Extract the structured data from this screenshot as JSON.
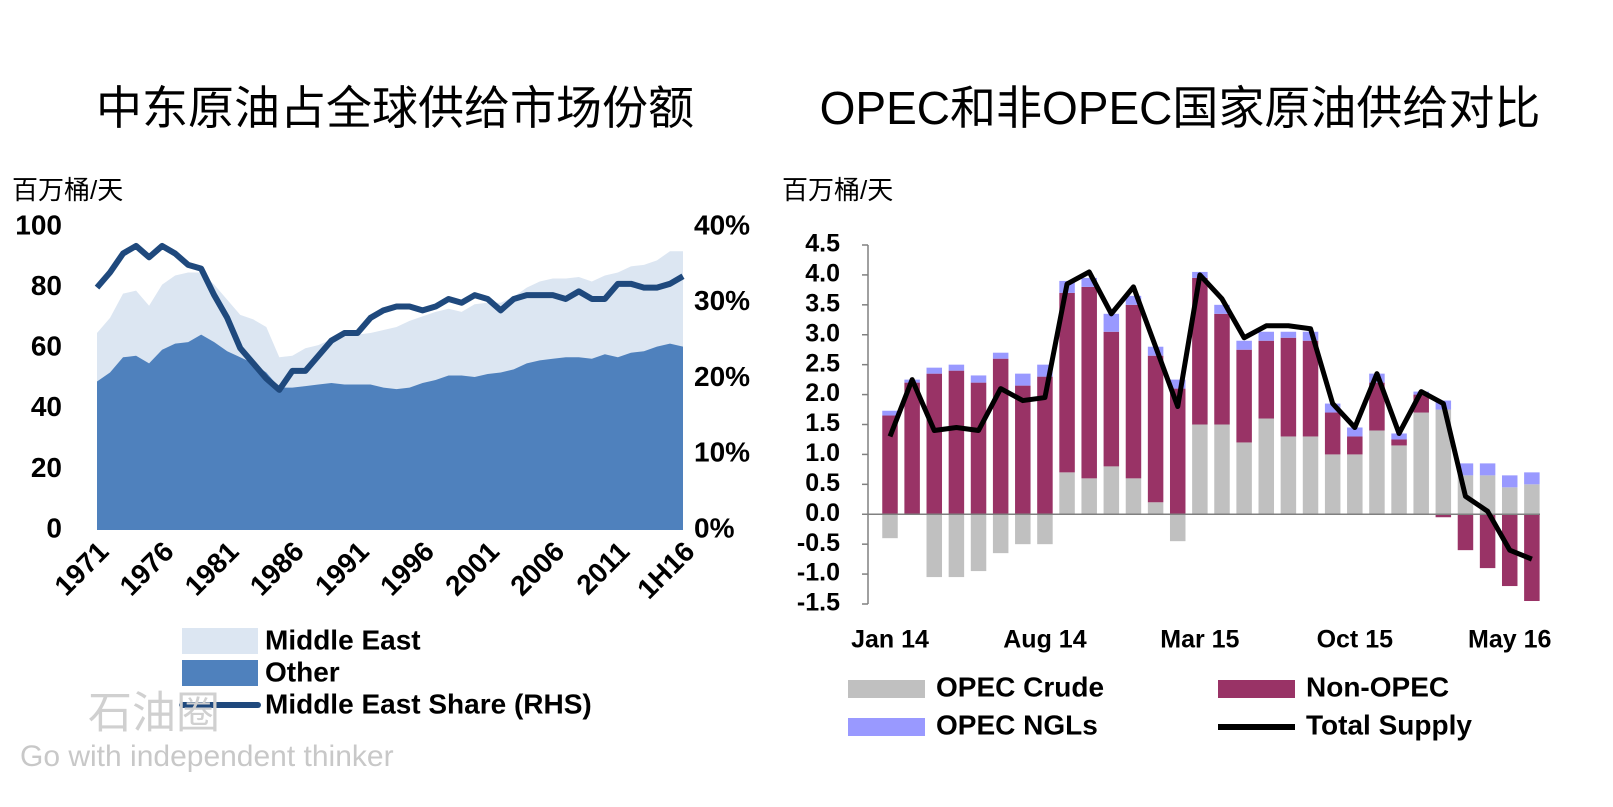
{
  "chart_data": [
    {
      "type": "area",
      "title": "中东原油占全球供给市场份额",
      "y_label": "百万桶/天",
      "categories": [
        "1971",
        null,
        null,
        null,
        null,
        "1976",
        null,
        null,
        null,
        null,
        "1981",
        null,
        null,
        null,
        null,
        "1986",
        null,
        null,
        null,
        null,
        "1991",
        null,
        null,
        null,
        null,
        "1996",
        null,
        null,
        null,
        null,
        "2001",
        null,
        null,
        null,
        null,
        "2006",
        null,
        null,
        null,
        null,
        "2011",
        null,
        null,
        null,
        null,
        "1H16"
      ],
      "series": [
        {
          "name": "Middle East",
          "color": "#dce6f2",
          "values": [
            16,
            18,
            21,
            21.5,
            19,
            21.5,
            22.5,
            23,
            20.5,
            19,
            17,
            14,
            14.5,
            15,
            10,
            10.5,
            12.5,
            13,
            14.5,
            16,
            16.5,
            17,
            19,
            20.5,
            22,
            22,
            22.5,
            22,
            21,
            24,
            23.5,
            23,
            24,
            25,
            26,
            26.5,
            26,
            26.5,
            25.5,
            26,
            28,
            28.5,
            28.5,
            28.5,
            30.5,
            31.5
          ]
        },
        {
          "name": "Other",
          "color": "#4f81bd",
          "values": [
            49,
            52,
            57,
            57.5,
            55,
            59.5,
            61.5,
            62,
            64.5,
            62,
            59,
            57,
            55,
            52,
            47,
            47,
            47.5,
            48,
            48.5,
            48,
            48,
            48,
            47,
            46.5,
            47,
            48.5,
            49.5,
            51,
            51,
            50.5,
            51.5,
            52,
            53,
            55,
            56,
            56.5,
            57,
            57,
            56.5,
            58,
            57,
            58.5,
            59,
            60.5,
            61.5,
            60.5
          ]
        },
        {
          "name": "Middle East Share (RHS)",
          "color": "#1f497d",
          "axis": "y2",
          "values": [
            32,
            34,
            36.5,
            37.5,
            36,
            37.5,
            36.5,
            35,
            34.5,
            31,
            28,
            24,
            22,
            20,
            18.5,
            21,
            21,
            23,
            25,
            26,
            26,
            28,
            29,
            29.5,
            29.5,
            29,
            29.5,
            30.5,
            30,
            31,
            30.5,
            29,
            30.5,
            31,
            31,
            31,
            30.5,
            31.5,
            30.5,
            30.5,
            32.5,
            32.5,
            32,
            32,
            32.5,
            33.5
          ]
        }
      ],
      "ylim": [
        0,
        100
      ],
      "yticks": [
        0,
        20,
        40,
        60,
        80,
        100
      ],
      "y2lim": [
        0,
        40
      ],
      "y2ticks": [
        {
          "value": 0,
          "label": "0%"
        },
        {
          "value": 10,
          "label": "10%"
        },
        {
          "value": 20,
          "label": "20%"
        },
        {
          "value": 30,
          "label": "30%"
        },
        {
          "value": 40,
          "label": "40%"
        }
      ],
      "grid": false,
      "legend": "bottom"
    },
    {
      "type": "bar",
      "stacked": true,
      "title": "OPEC和非OPEC国家原油供给对比",
      "y_label": "百万桶/天",
      "categories": [
        "Jan 14",
        null,
        null,
        null,
        null,
        null,
        null,
        "Aug 14",
        null,
        null,
        null,
        null,
        null,
        null,
        "Mar 15",
        null,
        null,
        null,
        null,
        null,
        null,
        "Oct 15",
        null,
        null,
        null,
        null,
        null,
        null,
        "May 16",
        null
      ],
      "series": [
        {
          "name": "OPEC Crude",
          "color": "#c0c0c0",
          "values": [
            -0.4,
            0,
            -1.05,
            -1.05,
            -0.95,
            -0.65,
            -0.5,
            -0.5,
            0.7,
            0.6,
            0.8,
            0.6,
            0.2,
            -0.45,
            1.5,
            1.5,
            1.2,
            1.6,
            1.3,
            1.3,
            1.0,
            1.0,
            1.4,
            1.15,
            1.7,
            1.75,
            0.65,
            0.65,
            0.45,
            0.5
          ]
        },
        {
          "name": "Non-OPEC",
          "color": "#993366",
          "values": [
            1.65,
            2.2,
            2.35,
            2.4,
            2.2,
            2.6,
            2.15,
            2.3,
            3.0,
            3.2,
            2.25,
            2.9,
            2.45,
            2.1,
            2.45,
            1.85,
            1.55,
            1.3,
            1.65,
            1.6,
            0.7,
            0.3,
            0.8,
            0.1,
            0.3,
            -0.05,
            -0.6,
            -0.9,
            -1.2,
            -1.45
          ]
        },
        {
          "name": "OPEC NGLs",
          "color": "#9999ff",
          "values": [
            0.08,
            0.05,
            0.1,
            0.1,
            0.12,
            0.1,
            0.2,
            0.2,
            0.2,
            0.15,
            0.3,
            0.15,
            0.15,
            0.15,
            0.1,
            0.15,
            0.15,
            0.15,
            0.1,
            0.15,
            0.15,
            0.15,
            0.15,
            0.1,
            0.05,
            0.15,
            0.2,
            0.2,
            0.2,
            0.2
          ]
        },
        {
          "name": "Total Supply",
          "color": "#000000",
          "type": "line",
          "values": [
            1.3,
            2.25,
            1.4,
            1.45,
            1.4,
            2.1,
            1.9,
            1.95,
            3.85,
            4.05,
            3.35,
            3.8,
            2.8,
            1.8,
            4.0,
            3.6,
            2.95,
            3.15,
            3.15,
            3.1,
            1.85,
            1.45,
            2.35,
            1.35,
            2.05,
            1.85,
            0.3,
            0.05,
            -0.6,
            -0.75
          ]
        }
      ],
      "ylim": [
        -1.5,
        4.5
      ],
      "yticks": [
        -1.5,
        {
          "value": -1,
          "label": "-1.0"
        },
        -0.5,
        {
          "value": 0,
          "label": "0.0"
        },
        0.5,
        {
          "value": 1,
          "label": "1.0"
        },
        1.5,
        {
          "value": 2,
          "label": "2.0"
        },
        2.5,
        {
          "value": 3,
          "label": "3.0"
        },
        3.5,
        {
          "value": 4,
          "label": "4.0"
        },
        4.5
      ],
      "grid": false,
      "legend": "bottom"
    }
  ],
  "watermark": {
    "name": "石油圈",
    "tagline": "Go with independent thinker"
  }
}
